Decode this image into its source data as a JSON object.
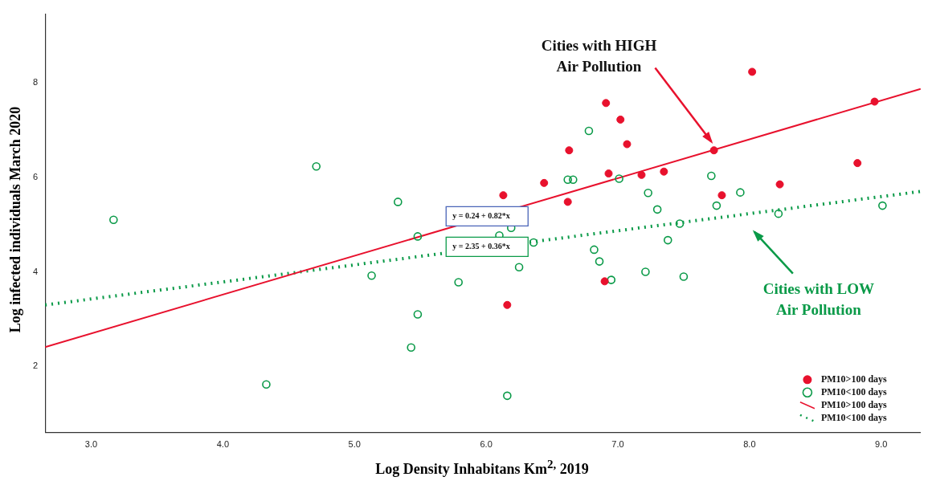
{
  "chart_data": {
    "type": "scatter",
    "xlabel": "Log Density Inhabitans Km$^{2,}$ 2019",
    "ylabel": "Log infected individuals March 2020",
    "xlim": [
      2.65,
      9.3
    ],
    "ylim": [
      0.6,
      9.45
    ],
    "xticks": [
      {
        "value": 3,
        "label": "3.0"
      },
      {
        "value": 4,
        "label": "4.0"
      },
      {
        "value": 5,
        "label": "5.0"
      },
      {
        "value": 6,
        "label": "6.0"
      },
      {
        "value": 7,
        "label": "7.0"
      },
      {
        "value": 8,
        "label": "8.0"
      },
      {
        "value": 9,
        "label": "9.0"
      }
    ],
    "yticks": [
      2,
      4,
      6,
      8
    ],
    "grid": false,
    "legend": "bottom right",
    "series": [
      {
        "name": "PM10>100 days",
        "type": "scatter",
        "marker": "circle",
        "color": "#e8112d",
        "x": [
          6.13,
          6.63,
          6.91,
          7.02,
          7.07,
          6.44,
          6.62,
          6.93,
          7.18,
          7.35,
          7.73,
          8.02,
          8.95,
          8.82,
          8.23,
          7.79,
          6.9,
          6.16
        ],
        "values": [
          5.62,
          6.57,
          7.57,
          7.22,
          6.7,
          5.88,
          5.48,
          6.08,
          6.05,
          6.12,
          6.57,
          8.23,
          7.6,
          6.3,
          5.85,
          5.62,
          3.8,
          3.3
        ]
      },
      {
        "name": "PM10<100 days",
        "type": "scatter",
        "marker": "circle",
        "color": "#0a9a48",
        "x": [
          3.17,
          4.71,
          5.33,
          5.48,
          5.13,
          5.79,
          5.48,
          5.43,
          4.33,
          6.78,
          6.62,
          6.66,
          7.01,
          7.23,
          7.71,
          7.93,
          7.75,
          7.3,
          9.01,
          8.22,
          7.47,
          6.19,
          6.1,
          6.36,
          7.38,
          6.82,
          6.25,
          6.86,
          7.21,
          6.95,
          7.5,
          6.16
        ],
        "values": [
          5.1,
          6.23,
          5.48,
          4.75,
          3.92,
          3.78,
          3.1,
          2.4,
          1.62,
          6.98,
          5.95,
          5.95,
          5.97,
          5.67,
          6.03,
          5.68,
          5.4,
          5.32,
          5.4,
          5.23,
          5.02,
          4.93,
          4.77,
          4.62,
          4.67,
          4.47,
          4.1,
          4.22,
          4.0,
          3.83,
          3.9,
          1.38
        ]
      },
      {
        "name": "PM10>100 days",
        "type": "line",
        "marker": "none",
        "line_style": "solid",
        "color": "#e8112d",
        "x": [
          2.65,
          9.3
        ],
        "values": [
          2.41,
          7.87
        ]
      },
      {
        "name": "PM10<100 days",
        "type": "line",
        "marker": "none",
        "line_style": "dotted",
        "color": "#0a9a48",
        "x": [
          2.65,
          9.3
        ],
        "values": [
          3.3,
          5.7
        ]
      }
    ],
    "annotations": [
      "Cities with HIGH Air Pollution",
      "Cities with LOW Air Pollution",
      "y = 0.24 + 0.82*x",
      "y = 2.35 + 0.36*x"
    ]
  }
}
